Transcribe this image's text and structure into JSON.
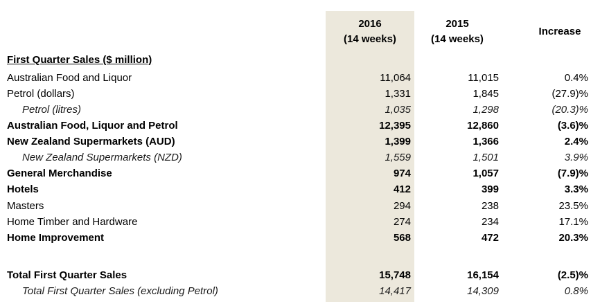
{
  "headers": {
    "col_2016_line1": "2016",
    "col_2016_line2": "(14 weeks)",
    "col_2015_line1": "2015",
    "col_2015_line2": "(14 weeks)",
    "col_increase": "Increase"
  },
  "section_title": "First Quarter Sales ($ million)",
  "rows": [
    {
      "label": "Australian Food and Liquor",
      "v2016": "11,064",
      "v2015": "11,015",
      "inc": "0.4%",
      "style": "normal"
    },
    {
      "label": "Petrol (dollars)",
      "v2016": "1,331",
      "v2015": "1,845",
      "inc": "(27.9)%",
      "style": "normal"
    },
    {
      "label": "Petrol (litres)",
      "v2016": "1,035",
      "v2015": "1,298",
      "inc": "(20.3)%",
      "style": "italic"
    },
    {
      "label": "Australian Food, Liquor and Petrol",
      "v2016": "12,395",
      "v2015": "12,860",
      "inc": "(3.6)%",
      "style": "bold"
    },
    {
      "label": "New Zealand Supermarkets (AUD)",
      "v2016": "1,399",
      "v2015": "1,366",
      "inc": "2.4%",
      "style": "bold"
    },
    {
      "label": "New Zealand Supermarkets (NZD)",
      "v2016": "1,559",
      "v2015": "1,501",
      "inc": "3.9%",
      "style": "italic"
    },
    {
      "label": "General Merchandise",
      "v2016": "974",
      "v2015": "1,057",
      "inc": "(7.9)%",
      "style": "bold"
    },
    {
      "label": "Hotels",
      "v2016": "412",
      "v2015": "399",
      "inc": "3.3%",
      "style": "bold"
    },
    {
      "label": "Masters",
      "v2016": "294",
      "v2015": "238",
      "inc": "23.5%",
      "style": "normal"
    },
    {
      "label": "Home Timber and Hardware",
      "v2016": "274",
      "v2015": "234",
      "inc": "17.1%",
      "style": "normal"
    },
    {
      "label": "Home Improvement",
      "v2016": "568",
      "v2015": "472",
      "inc": "20.3%",
      "style": "bold"
    }
  ],
  "totals": [
    {
      "label": "Total First Quarter Sales",
      "v2016": "15,748",
      "v2015": "16,154",
      "inc": "(2.5)%",
      "style": "bold"
    },
    {
      "label": "Total First Quarter Sales (excluding Petrol)",
      "v2016": "14,417",
      "v2015": "14,309",
      "inc": "0.8%",
      "style": "italic"
    }
  ],
  "colors": {
    "shade": "#ece8dc",
    "text": "#000000"
  }
}
